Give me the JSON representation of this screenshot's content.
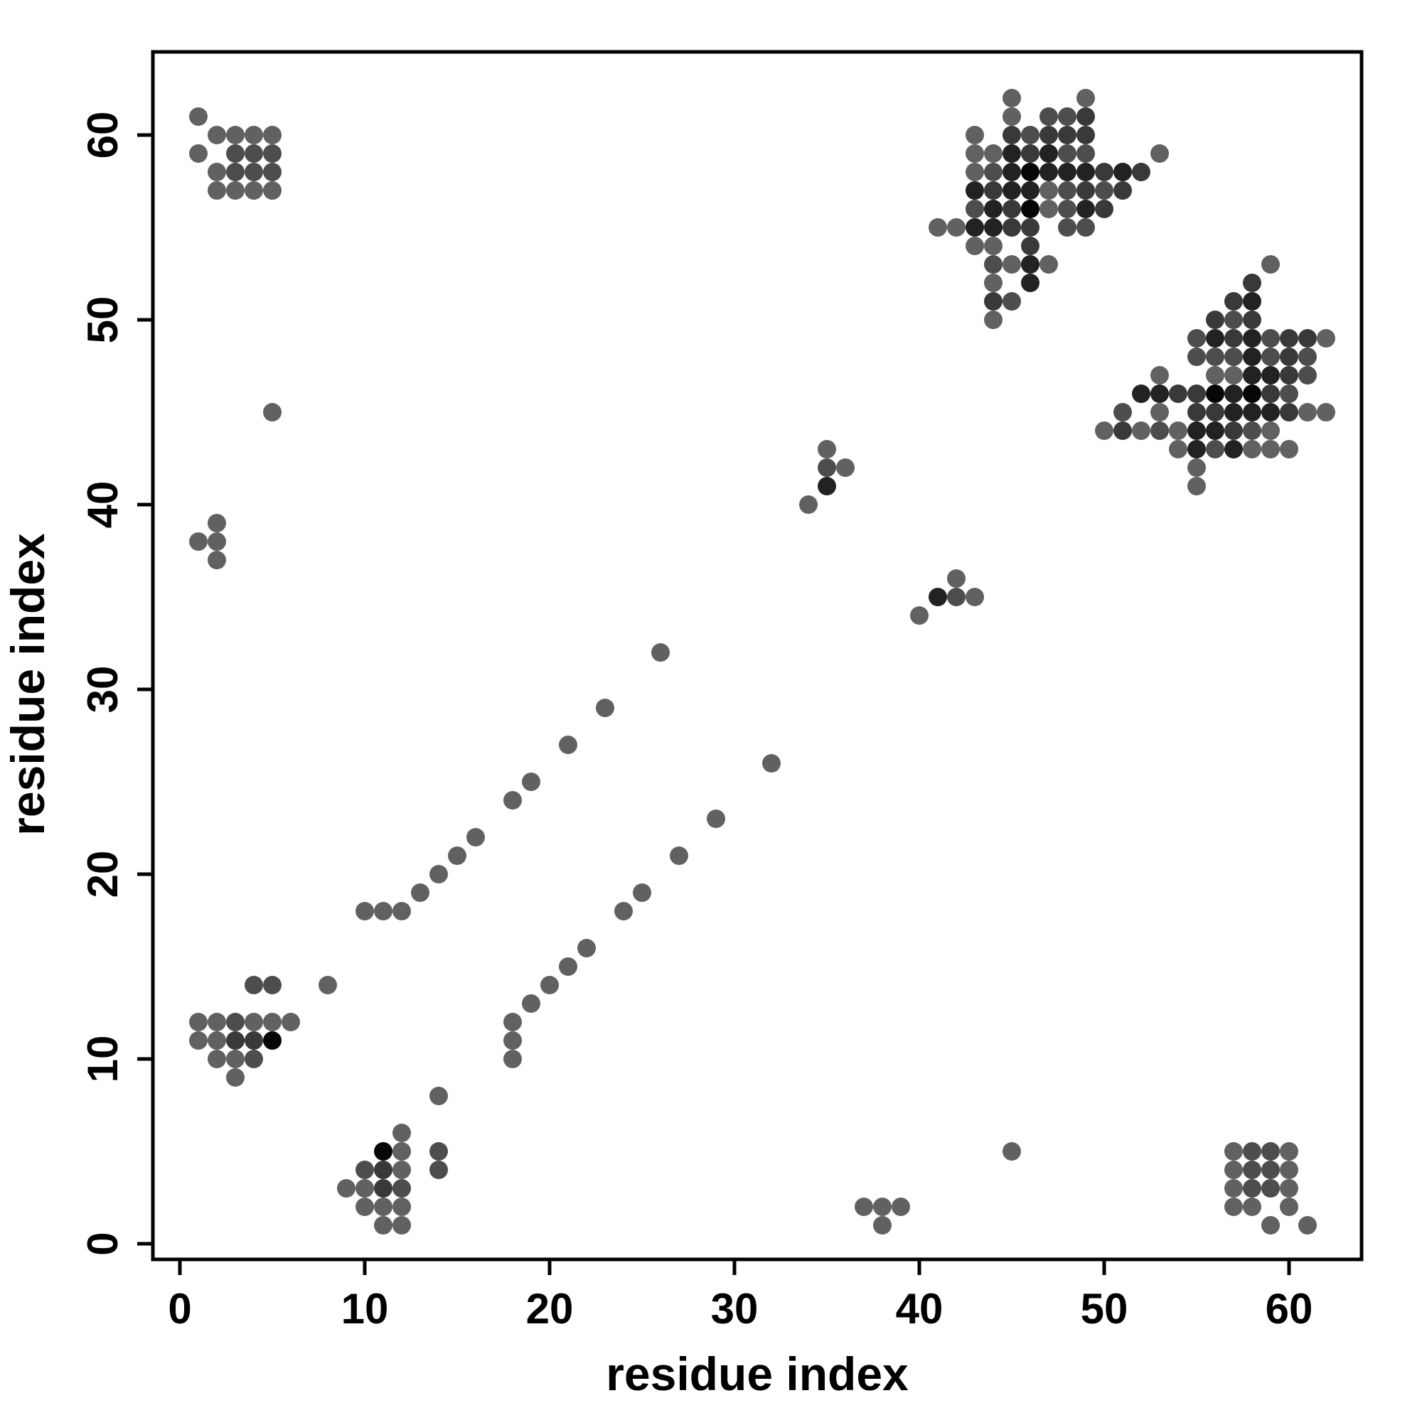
{
  "figure": {
    "xlabel": "residue index",
    "ylabel": "residue index"
  },
  "chart_data": {
    "type": "scatter",
    "title": "",
    "xlabel": "residue index",
    "ylabel": "residue index",
    "xlim": [
      -1.5,
      63.5
    ],
    "ylim": [
      -1.5,
      63.5
    ],
    "xticks": [
      0,
      10,
      20,
      30,
      40,
      50,
      60
    ],
    "yticks": [
      0,
      10,
      20,
      30,
      40,
      50,
      60
    ],
    "grid": false,
    "legend": "none",
    "marker": "circle",
    "marker_diameter_px": 26,
    "shade_palette": {
      "m": "#616161",
      "md": "#4d4d4d",
      "d": "#393939",
      "vd": "#222222",
      "b": "#070707"
    },
    "points": [
      [
        1,
        61,
        "m"
      ],
      [
        2,
        60,
        "m"
      ],
      [
        3,
        60,
        "m"
      ],
      [
        4,
        60,
        "m"
      ],
      [
        5,
        60,
        "m"
      ],
      [
        1,
        59,
        "m"
      ],
      [
        3,
        59,
        "md"
      ],
      [
        4,
        59,
        "md"
      ],
      [
        5,
        59,
        "md"
      ],
      [
        2,
        58,
        "m"
      ],
      [
        3,
        58,
        "md"
      ],
      [
        4,
        58,
        "md"
      ],
      [
        5,
        58,
        "md"
      ],
      [
        2,
        57,
        "m"
      ],
      [
        3,
        57,
        "m"
      ],
      [
        4,
        57,
        "m"
      ],
      [
        5,
        57,
        "m"
      ],
      [
        61,
        1,
        "m"
      ],
      [
        60,
        2,
        "m"
      ],
      [
        60,
        3,
        "m"
      ],
      [
        60,
        4,
        "m"
      ],
      [
        60,
        5,
        "m"
      ],
      [
        59,
        1,
        "m"
      ],
      [
        59,
        3,
        "md"
      ],
      [
        59,
        4,
        "md"
      ],
      [
        59,
        5,
        "md"
      ],
      [
        58,
        2,
        "m"
      ],
      [
        58,
        3,
        "md"
      ],
      [
        58,
        4,
        "md"
      ],
      [
        58,
        5,
        "md"
      ],
      [
        57,
        2,
        "m"
      ],
      [
        57,
        3,
        "m"
      ],
      [
        57,
        4,
        "m"
      ],
      [
        57,
        5,
        "m"
      ],
      [
        4,
        14,
        "md"
      ],
      [
        5,
        14,
        "md"
      ],
      [
        8,
        14,
        "m"
      ],
      [
        1,
        12,
        "m"
      ],
      [
        2,
        12,
        "m"
      ],
      [
        3,
        12,
        "md"
      ],
      [
        4,
        12,
        "m"
      ],
      [
        5,
        12,
        "m"
      ],
      [
        6,
        12,
        "m"
      ],
      [
        1,
        11,
        "m"
      ],
      [
        2,
        11,
        "m"
      ],
      [
        3,
        11,
        "d"
      ],
      [
        4,
        11,
        "d"
      ],
      [
        5,
        11,
        "b"
      ],
      [
        2,
        10,
        "m"
      ],
      [
        3,
        10,
        "m"
      ],
      [
        4,
        10,
        "md"
      ],
      [
        3,
        9,
        "m"
      ],
      [
        14,
        4,
        "md"
      ],
      [
        14,
        5,
        "md"
      ],
      [
        14,
        8,
        "m"
      ],
      [
        12,
        1,
        "m"
      ],
      [
        12,
        2,
        "m"
      ],
      [
        12,
        3,
        "md"
      ],
      [
        12,
        4,
        "m"
      ],
      [
        12,
        5,
        "m"
      ],
      [
        12,
        6,
        "m"
      ],
      [
        11,
        1,
        "m"
      ],
      [
        11,
        2,
        "m"
      ],
      [
        11,
        3,
        "d"
      ],
      [
        11,
        4,
        "d"
      ],
      [
        11,
        5,
        "b"
      ],
      [
        10,
        2,
        "m"
      ],
      [
        10,
        3,
        "m"
      ],
      [
        10,
        4,
        "md"
      ],
      [
        9,
        3,
        "m"
      ],
      [
        10,
        18,
        "m"
      ],
      [
        11,
        18,
        "m"
      ],
      [
        12,
        18,
        "m"
      ],
      [
        13,
        19,
        "m"
      ],
      [
        14,
        20,
        "m"
      ],
      [
        15,
        21,
        "m"
      ],
      [
        16,
        22,
        "m"
      ],
      [
        18,
        24,
        "m"
      ],
      [
        19,
        25,
        "m"
      ],
      [
        21,
        27,
        "m"
      ],
      [
        23,
        29,
        "m"
      ],
      [
        26,
        32,
        "m"
      ],
      [
        18,
        10,
        "m"
      ],
      [
        18,
        11,
        "m"
      ],
      [
        18,
        12,
        "m"
      ],
      [
        19,
        13,
        "m"
      ],
      [
        20,
        14,
        "m"
      ],
      [
        21,
        15,
        "m"
      ],
      [
        22,
        16,
        "m"
      ],
      [
        24,
        18,
        "m"
      ],
      [
        25,
        19,
        "m"
      ],
      [
        27,
        21,
        "m"
      ],
      [
        29,
        23,
        "m"
      ],
      [
        32,
        26,
        "m"
      ],
      [
        2,
        39,
        "m"
      ],
      [
        1,
        38,
        "m"
      ],
      [
        2,
        38,
        "m"
      ],
      [
        2,
        37,
        "m"
      ],
      [
        39,
        2,
        "m"
      ],
      [
        38,
        1,
        "m"
      ],
      [
        38,
        2,
        "m"
      ],
      [
        37,
        2,
        "m"
      ],
      [
        35,
        43,
        "m"
      ],
      [
        35,
        42,
        "md"
      ],
      [
        36,
        42,
        "m"
      ],
      [
        35,
        41,
        "vd"
      ],
      [
        34,
        40,
        "m"
      ],
      [
        43,
        35,
        "m"
      ],
      [
        42,
        35,
        "md"
      ],
      [
        42,
        36,
        "m"
      ],
      [
        41,
        35,
        "vd"
      ],
      [
        40,
        34,
        "m"
      ],
      [
        5,
        45,
        "m"
      ],
      [
        45,
        5,
        "m"
      ],
      [
        45,
        62,
        "m"
      ],
      [
        49,
        62,
        "m"
      ],
      [
        45,
        61,
        "m"
      ],
      [
        47,
        61,
        "md"
      ],
      [
        48,
        61,
        "md"
      ],
      [
        49,
        61,
        "d"
      ],
      [
        43,
        60,
        "m"
      ],
      [
        45,
        60,
        "d"
      ],
      [
        46,
        60,
        "md"
      ],
      [
        47,
        60,
        "d"
      ],
      [
        48,
        60,
        "d"
      ],
      [
        49,
        60,
        "d"
      ],
      [
        43,
        59,
        "m"
      ],
      [
        44,
        59,
        "m"
      ],
      [
        45,
        59,
        "vd"
      ],
      [
        46,
        59,
        "d"
      ],
      [
        47,
        59,
        "vd"
      ],
      [
        48,
        59,
        "md"
      ],
      [
        49,
        59,
        "md"
      ],
      [
        53,
        59,
        "m"
      ],
      [
        43,
        58,
        "m"
      ],
      [
        44,
        58,
        "md"
      ],
      [
        45,
        58,
        "vd"
      ],
      [
        46,
        58,
        "b"
      ],
      [
        47,
        58,
        "vd"
      ],
      [
        48,
        58,
        "vd"
      ],
      [
        49,
        58,
        "vd"
      ],
      [
        50,
        58,
        "d"
      ],
      [
        51,
        58,
        "vd"
      ],
      [
        52,
        58,
        "d"
      ],
      [
        43,
        57,
        "vd"
      ],
      [
        44,
        57,
        "d"
      ],
      [
        45,
        57,
        "vd"
      ],
      [
        46,
        57,
        "vd"
      ],
      [
        47,
        57,
        "m"
      ],
      [
        48,
        57,
        "md"
      ],
      [
        49,
        57,
        "d"
      ],
      [
        50,
        57,
        "md"
      ],
      [
        51,
        57,
        "d"
      ],
      [
        43,
        56,
        "md"
      ],
      [
        44,
        56,
        "vd"
      ],
      [
        45,
        56,
        "d"
      ],
      [
        46,
        56,
        "b"
      ],
      [
        47,
        56,
        "m"
      ],
      [
        48,
        56,
        "md"
      ],
      [
        49,
        56,
        "vd"
      ],
      [
        50,
        56,
        "d"
      ],
      [
        41,
        55,
        "m"
      ],
      [
        42,
        55,
        "m"
      ],
      [
        43,
        55,
        "vd"
      ],
      [
        44,
        55,
        "vd"
      ],
      [
        45,
        55,
        "d"
      ],
      [
        46,
        55,
        "d"
      ],
      [
        48,
        55,
        "md"
      ],
      [
        49,
        55,
        "md"
      ],
      [
        43,
        54,
        "m"
      ],
      [
        44,
        54,
        "m"
      ],
      [
        46,
        54,
        "d"
      ],
      [
        44,
        53,
        "md"
      ],
      [
        45,
        53,
        "m"
      ],
      [
        46,
        53,
        "vd"
      ],
      [
        47,
        53,
        "m"
      ],
      [
        44,
        52,
        "m"
      ],
      [
        46,
        52,
        "vd"
      ],
      [
        44,
        51,
        "d"
      ],
      [
        45,
        51,
        "md"
      ],
      [
        44,
        50,
        "m"
      ],
      [
        62,
        45,
        "m"
      ],
      [
        62,
        49,
        "m"
      ],
      [
        61,
        45,
        "m"
      ],
      [
        61,
        47,
        "md"
      ],
      [
        61,
        48,
        "md"
      ],
      [
        61,
        49,
        "d"
      ],
      [
        60,
        43,
        "m"
      ],
      [
        60,
        45,
        "d"
      ],
      [
        60,
        46,
        "md"
      ],
      [
        60,
        47,
        "d"
      ],
      [
        60,
        48,
        "d"
      ],
      [
        60,
        49,
        "d"
      ],
      [
        59,
        43,
        "m"
      ],
      [
        59,
        44,
        "m"
      ],
      [
        59,
        45,
        "vd"
      ],
      [
        59,
        46,
        "d"
      ],
      [
        59,
        47,
        "vd"
      ],
      [
        59,
        48,
        "md"
      ],
      [
        59,
        49,
        "md"
      ],
      [
        59,
        53,
        "m"
      ],
      [
        58,
        43,
        "m"
      ],
      [
        58,
        44,
        "md"
      ],
      [
        58,
        45,
        "vd"
      ],
      [
        58,
        46,
        "b"
      ],
      [
        58,
        47,
        "vd"
      ],
      [
        58,
        48,
        "vd"
      ],
      [
        58,
        49,
        "vd"
      ],
      [
        58,
        50,
        "d"
      ],
      [
        58,
        51,
        "vd"
      ],
      [
        58,
        52,
        "d"
      ],
      [
        57,
        43,
        "vd"
      ],
      [
        57,
        44,
        "d"
      ],
      [
        57,
        45,
        "vd"
      ],
      [
        57,
        46,
        "vd"
      ],
      [
        57,
        47,
        "m"
      ],
      [
        57,
        48,
        "md"
      ],
      [
        57,
        49,
        "d"
      ],
      [
        57,
        50,
        "md"
      ],
      [
        57,
        51,
        "d"
      ],
      [
        56,
        43,
        "md"
      ],
      [
        56,
        44,
        "vd"
      ],
      [
        56,
        45,
        "d"
      ],
      [
        56,
        46,
        "b"
      ],
      [
        56,
        47,
        "m"
      ],
      [
        56,
        48,
        "md"
      ],
      [
        56,
        49,
        "vd"
      ],
      [
        56,
        50,
        "d"
      ],
      [
        55,
        41,
        "m"
      ],
      [
        55,
        42,
        "m"
      ],
      [
        55,
        43,
        "vd"
      ],
      [
        55,
        44,
        "vd"
      ],
      [
        55,
        45,
        "d"
      ],
      [
        55,
        46,
        "d"
      ],
      [
        55,
        48,
        "md"
      ],
      [
        55,
        49,
        "md"
      ],
      [
        54,
        43,
        "m"
      ],
      [
        54,
        44,
        "m"
      ],
      [
        54,
        46,
        "d"
      ],
      [
        53,
        44,
        "md"
      ],
      [
        53,
        45,
        "m"
      ],
      [
        53,
        46,
        "vd"
      ],
      [
        53,
        47,
        "m"
      ],
      [
        52,
        44,
        "m"
      ],
      [
        52,
        46,
        "vd"
      ],
      [
        51,
        44,
        "d"
      ],
      [
        51,
        45,
        "md"
      ],
      [
        50,
        44,
        "m"
      ]
    ]
  }
}
